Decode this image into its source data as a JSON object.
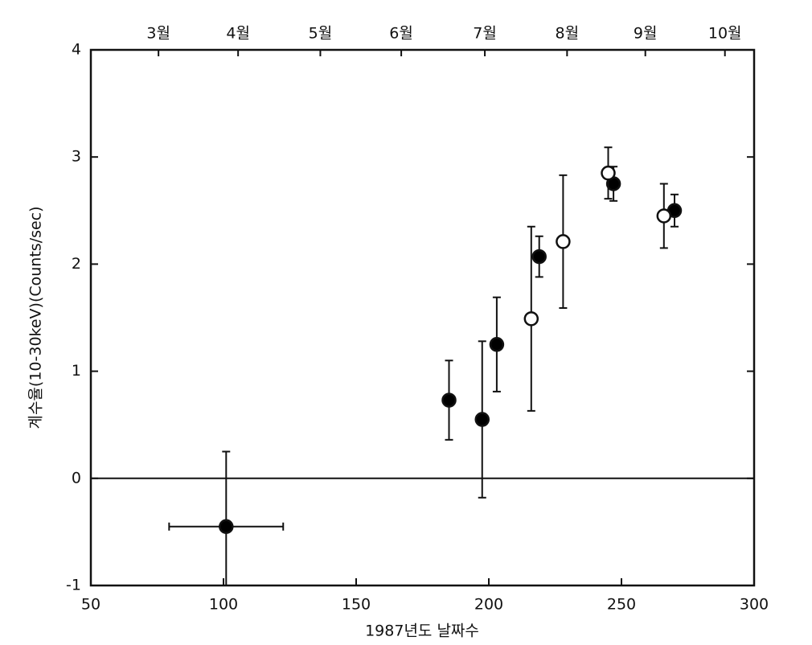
{
  "chart_data": {
    "type": "errorbar_scatter",
    "xlabel": "1987년도 날짜수",
    "ylabel": "계수율(10-30keV)(Counts/sec)",
    "xlim": [
      50,
      300
    ],
    "xticks": [
      50,
      100,
      150,
      200,
      250,
      300
    ],
    "ylim": [
      -1,
      4
    ],
    "yticks": [
      -1,
      0,
      1,
      2,
      3,
      4
    ],
    "top_ticks": [
      {
        "value": 75.5,
        "label": "3월"
      },
      {
        "value": 105.5,
        "label": "4월"
      },
      {
        "value": 136.5,
        "label": "5월"
      },
      {
        "value": 167,
        "label": "6월"
      },
      {
        "value": 198.5,
        "label": "7월"
      },
      {
        "value": 229.5,
        "label": "8월"
      },
      {
        "value": 259,
        "label": "9월"
      },
      {
        "value": 289,
        "label": "10월"
      }
    ],
    "zero_line": true,
    "series": [
      {
        "color": "#000000",
        "x": [
          101,
          185,
          197.5,
          203,
          219,
          247,
          270
        ],
        "values": [
          -0.45,
          0.73,
          0.55,
          1.25,
          2.07,
          2.75,
          2.5
        ],
        "errors": [
          0.7,
          0.37,
          0.73,
          0.44,
          0.19,
          0.16,
          0.15
        ],
        "x_errors": [
          21.5,
          null,
          null,
          null,
          null,
          null,
          null
        ]
      },
      {
        "color": "#ffffff",
        "x": [
          216,
          228,
          245,
          266
        ],
        "values": [
          1.49,
          2.21,
          2.85,
          2.45
        ],
        "errors": [
          0.86,
          0.62,
          0.24,
          0.3
        ]
      }
    ]
  }
}
